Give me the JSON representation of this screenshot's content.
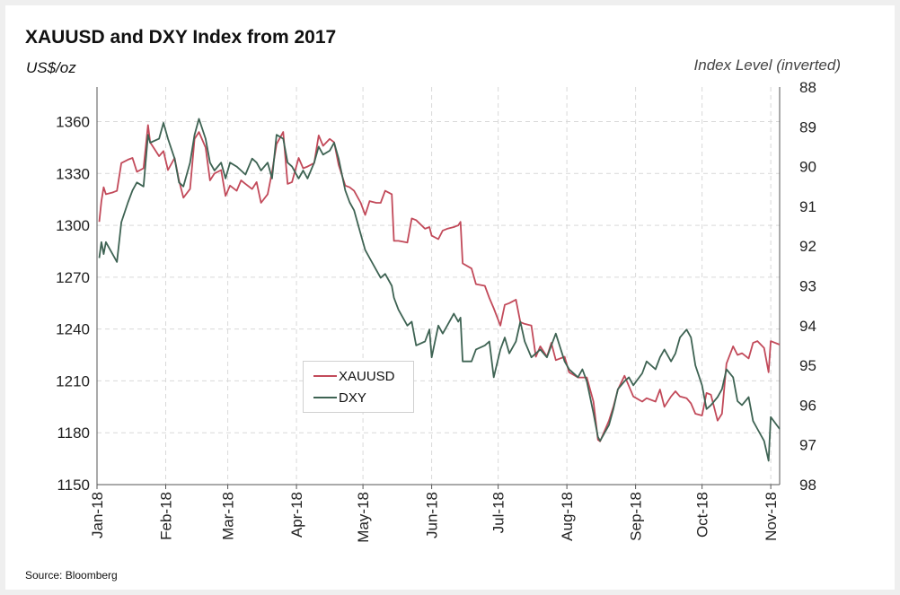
{
  "title": "XAUUSD and DXY Index from 2017",
  "left_axis_label": "US$/oz",
  "right_axis_label": "Index Level (inverted)",
  "source": "Source: Bloomberg",
  "colors": {
    "xauusd": "#c24a5a",
    "dxy": "#3e6353",
    "grid": "#d9d9d9",
    "axis": "#555555"
  },
  "chart_data": {
    "type": "line",
    "x_ticks": [
      "Jan-18",
      "Feb-18",
      "Mar-18",
      "Apr-18",
      "May-18",
      "Jun-18",
      "Jul-18",
      "Aug-18",
      "Sep-18",
      "Oct-18",
      "Nov-18"
    ],
    "x_range": [
      "2018-01-01",
      "2018-11-05"
    ],
    "y_left": {
      "range": [
        1150,
        1380
      ],
      "ticks": [
        1150,
        1180,
        1210,
        1240,
        1270,
        1300,
        1330,
        1360
      ]
    },
    "y_right": {
      "range": [
        88,
        98
      ],
      "inverted": true,
      "ticks": [
        88,
        89,
        90,
        91,
        92,
        93,
        94,
        95,
        96,
        97,
        98
      ]
    },
    "legend": {
      "position": "center"
    },
    "grid": true,
    "series": [
      {
        "name": "XAUUSD",
        "axis": "left",
        "points": [
          [
            "2018-01-02",
            1302
          ],
          [
            "2018-01-03",
            1314
          ],
          [
            "2018-01-04",
            1322
          ],
          [
            "2018-01-05",
            1318
          ],
          [
            "2018-01-08",
            1319
          ],
          [
            "2018-01-10",
            1320
          ],
          [
            "2018-01-12",
            1336
          ],
          [
            "2018-01-15",
            1338
          ],
          [
            "2018-01-17",
            1339
          ],
          [
            "2018-01-19",
            1331
          ],
          [
            "2018-01-22",
            1333
          ],
          [
            "2018-01-24",
            1358
          ],
          [
            "2018-01-25",
            1348
          ],
          [
            "2018-01-29",
            1340
          ],
          [
            "2018-01-31",
            1343
          ],
          [
            "2018-02-02",
            1332
          ],
          [
            "2018-02-05",
            1339
          ],
          [
            "2018-02-07",
            1326
          ],
          [
            "2018-02-09",
            1316
          ],
          [
            "2018-02-12",
            1321
          ],
          [
            "2018-02-14",
            1350
          ],
          [
            "2018-02-16",
            1354
          ],
          [
            "2018-02-19",
            1345
          ],
          [
            "2018-02-21",
            1326
          ],
          [
            "2018-02-23",
            1330
          ],
          [
            "2018-02-26",
            1332
          ],
          [
            "2018-02-28",
            1317
          ],
          [
            "2018-03-02",
            1323
          ],
          [
            "2018-03-05",
            1320
          ],
          [
            "2018-03-07",
            1326
          ],
          [
            "2018-03-09",
            1324
          ],
          [
            "2018-03-12",
            1321
          ],
          [
            "2018-03-14",
            1325
          ],
          [
            "2018-03-16",
            1313
          ],
          [
            "2018-03-19",
            1318
          ],
          [
            "2018-03-21",
            1331
          ],
          [
            "2018-03-23",
            1347
          ],
          [
            "2018-03-26",
            1354
          ],
          [
            "2018-03-28",
            1324
          ],
          [
            "2018-03-30",
            1325
          ],
          [
            "2018-04-02",
            1339
          ],
          [
            "2018-04-04",
            1333
          ],
          [
            "2018-04-06",
            1334
          ],
          [
            "2018-04-09",
            1336
          ],
          [
            "2018-04-11",
            1352
          ],
          [
            "2018-04-13",
            1346
          ],
          [
            "2018-04-16",
            1350
          ],
          [
            "2018-04-18",
            1348
          ],
          [
            "2018-04-20",
            1335
          ],
          [
            "2018-04-23",
            1323
          ],
          [
            "2018-04-25",
            1322
          ],
          [
            "2018-04-27",
            1320
          ],
          [
            "2018-04-30",
            1313
          ],
          [
            "2018-05-02",
            1306
          ],
          [
            "2018-05-04",
            1314
          ],
          [
            "2018-05-07",
            1313
          ],
          [
            "2018-05-09",
            1313
          ],
          [
            "2018-05-11",
            1320
          ],
          [
            "2018-05-14",
            1318
          ],
          [
            "2018-05-15",
            1291
          ],
          [
            "2018-05-17",
            1291
          ],
          [
            "2018-05-21",
            1290
          ],
          [
            "2018-05-23",
            1304
          ],
          [
            "2018-05-25",
            1303
          ],
          [
            "2018-05-29",
            1298
          ],
          [
            "2018-05-31",
            1299
          ],
          [
            "2018-06-01",
            1294
          ],
          [
            "2018-06-04",
            1292
          ],
          [
            "2018-06-06",
            1297
          ],
          [
            "2018-06-08",
            1298
          ],
          [
            "2018-06-11",
            1299
          ],
          [
            "2018-06-13",
            1300
          ],
          [
            "2018-06-14",
            1302
          ],
          [
            "2018-06-15",
            1278
          ],
          [
            "2018-06-19",
            1275
          ],
          [
            "2018-06-21",
            1266
          ],
          [
            "2018-06-25",
            1265
          ],
          [
            "2018-06-27",
            1258
          ],
          [
            "2018-06-29",
            1252
          ],
          [
            "2018-07-02",
            1242
          ],
          [
            "2018-07-04",
            1254
          ],
          [
            "2018-07-06",
            1255
          ],
          [
            "2018-07-09",
            1257
          ],
          [
            "2018-07-11",
            1244
          ],
          [
            "2018-07-13",
            1243
          ],
          [
            "2018-07-16",
            1242
          ],
          [
            "2018-07-18",
            1224
          ],
          [
            "2018-07-20",
            1230
          ],
          [
            "2018-07-23",
            1224
          ],
          [
            "2018-07-25",
            1232
          ],
          [
            "2018-07-27",
            1222
          ],
          [
            "2018-07-31",
            1224
          ],
          [
            "2018-08-02",
            1215
          ],
          [
            "2018-08-06",
            1212
          ],
          [
            "2018-08-08",
            1212
          ],
          [
            "2018-08-10",
            1212
          ],
          [
            "2018-08-13",
            1198
          ],
          [
            "2018-08-15",
            1176
          ],
          [
            "2018-08-16",
            1175
          ],
          [
            "2018-08-20",
            1187
          ],
          [
            "2018-08-22",
            1195
          ],
          [
            "2018-08-24",
            1205
          ],
          [
            "2018-08-27",
            1213
          ],
          [
            "2018-08-29",
            1207
          ],
          [
            "2018-08-31",
            1201
          ],
          [
            "2018-09-04",
            1198
          ],
          [
            "2018-09-06",
            1200
          ],
          [
            "2018-09-10",
            1198
          ],
          [
            "2018-09-12",
            1205
          ],
          [
            "2018-09-14",
            1195
          ],
          [
            "2018-09-17",
            1201
          ],
          [
            "2018-09-19",
            1204
          ],
          [
            "2018-09-21",
            1201
          ],
          [
            "2018-09-24",
            1200
          ],
          [
            "2018-09-26",
            1197
          ],
          [
            "2018-09-28",
            1191
          ],
          [
            "2018-10-01",
            1190
          ],
          [
            "2018-10-03",
            1203
          ],
          [
            "2018-10-05",
            1202
          ],
          [
            "2018-10-08",
            1187
          ],
          [
            "2018-10-10",
            1191
          ],
          [
            "2018-10-12",
            1220
          ],
          [
            "2018-10-15",
            1230
          ],
          [
            "2018-10-17",
            1225
          ],
          [
            "2018-10-19",
            1226
          ],
          [
            "2018-10-22",
            1223
          ],
          [
            "2018-10-24",
            1232
          ],
          [
            "2018-10-26",
            1233
          ],
          [
            "2018-10-29",
            1229
          ],
          [
            "2018-10-31",
            1215
          ],
          [
            "2018-11-01",
            1233
          ],
          [
            "2018-11-05",
            1231
          ]
        ]
      },
      {
        "name": "DXY",
        "axis": "right",
        "points": [
          [
            "2018-01-02",
            92.3
          ],
          [
            "2018-01-03",
            91.9
          ],
          [
            "2018-01-04",
            92.2
          ],
          [
            "2018-01-05",
            91.9
          ],
          [
            "2018-01-08",
            92.2
          ],
          [
            "2018-01-10",
            92.4
          ],
          [
            "2018-01-12",
            91.4
          ],
          [
            "2018-01-15",
            90.9
          ],
          [
            "2018-01-17",
            90.6
          ],
          [
            "2018-01-19",
            90.4
          ],
          [
            "2018-01-22",
            90.5
          ],
          [
            "2018-01-24",
            89.2
          ],
          [
            "2018-01-25",
            89.4
          ],
          [
            "2018-01-29",
            89.3
          ],
          [
            "2018-01-31",
            88.9
          ],
          [
            "2018-02-02",
            89.3
          ],
          [
            "2018-02-05",
            89.8
          ],
          [
            "2018-02-07",
            90.4
          ],
          [
            "2018-02-09",
            90.5
          ],
          [
            "2018-02-12",
            89.9
          ],
          [
            "2018-02-14",
            89.2
          ],
          [
            "2018-02-16",
            88.8
          ],
          [
            "2018-02-19",
            89.3
          ],
          [
            "2018-02-21",
            89.9
          ],
          [
            "2018-02-23",
            90.1
          ],
          [
            "2018-02-26",
            89.9
          ],
          [
            "2018-02-28",
            90.3
          ],
          [
            "2018-03-02",
            89.9
          ],
          [
            "2018-03-05",
            90.0
          ],
          [
            "2018-03-07",
            90.1
          ],
          [
            "2018-03-09",
            90.2
          ],
          [
            "2018-03-12",
            89.8
          ],
          [
            "2018-03-14",
            89.9
          ],
          [
            "2018-03-16",
            90.1
          ],
          [
            "2018-03-19",
            89.9
          ],
          [
            "2018-03-21",
            90.3
          ],
          [
            "2018-03-23",
            89.2
          ],
          [
            "2018-03-26",
            89.3
          ],
          [
            "2018-03-28",
            89.9
          ],
          [
            "2018-03-30",
            90.0
          ],
          [
            "2018-04-02",
            90.3
          ],
          [
            "2018-04-04",
            90.1
          ],
          [
            "2018-04-06",
            90.3
          ],
          [
            "2018-04-09",
            89.9
          ],
          [
            "2018-04-11",
            89.5
          ],
          [
            "2018-04-13",
            89.7
          ],
          [
            "2018-04-16",
            89.6
          ],
          [
            "2018-04-18",
            89.4
          ],
          [
            "2018-04-20",
            89.8
          ],
          [
            "2018-04-23",
            90.6
          ],
          [
            "2018-04-25",
            90.9
          ],
          [
            "2018-04-27",
            91.1
          ],
          [
            "2018-04-30",
            91.7
          ],
          [
            "2018-05-02",
            92.1
          ],
          [
            "2018-05-04",
            92.3
          ],
          [
            "2018-05-07",
            92.6
          ],
          [
            "2018-05-09",
            92.8
          ],
          [
            "2018-05-11",
            92.7
          ],
          [
            "2018-05-14",
            93.0
          ],
          [
            "2018-05-15",
            93.3
          ],
          [
            "2018-05-17",
            93.6
          ],
          [
            "2018-05-21",
            94.0
          ],
          [
            "2018-05-23",
            93.9
          ],
          [
            "2018-05-25",
            94.5
          ],
          [
            "2018-05-29",
            94.4
          ],
          [
            "2018-05-31",
            94.1
          ],
          [
            "2018-06-01",
            94.8
          ],
          [
            "2018-06-04",
            94.0
          ],
          [
            "2018-06-06",
            94.2
          ],
          [
            "2018-06-08",
            94.0
          ],
          [
            "2018-06-11",
            93.7
          ],
          [
            "2018-06-13",
            93.9
          ],
          [
            "2018-06-14",
            93.8
          ],
          [
            "2018-06-15",
            94.9
          ],
          [
            "2018-06-19",
            94.9
          ],
          [
            "2018-06-21",
            94.6
          ],
          [
            "2018-06-25",
            94.5
          ],
          [
            "2018-06-27",
            94.4
          ],
          [
            "2018-06-29",
            95.3
          ],
          [
            "2018-07-02",
            94.6
          ],
          [
            "2018-07-04",
            94.3
          ],
          [
            "2018-07-06",
            94.7
          ],
          [
            "2018-07-09",
            94.4
          ],
          [
            "2018-07-11",
            93.9
          ],
          [
            "2018-07-13",
            94.4
          ],
          [
            "2018-07-16",
            94.8
          ],
          [
            "2018-07-18",
            94.7
          ],
          [
            "2018-07-20",
            94.6
          ],
          [
            "2018-07-23",
            94.8
          ],
          [
            "2018-07-25",
            94.5
          ],
          [
            "2018-07-27",
            94.2
          ],
          [
            "2018-07-31",
            94.9
          ],
          [
            "2018-08-02",
            95.1
          ],
          [
            "2018-08-06",
            95.3
          ],
          [
            "2018-08-08",
            95.1
          ],
          [
            "2018-08-10",
            95.4
          ],
          [
            "2018-08-13",
            96.2
          ],
          [
            "2018-08-15",
            96.8
          ],
          [
            "2018-08-16",
            96.9
          ],
          [
            "2018-08-20",
            96.5
          ],
          [
            "2018-08-22",
            96.1
          ],
          [
            "2018-08-24",
            95.6
          ],
          [
            "2018-08-27",
            95.4
          ],
          [
            "2018-08-29",
            95.3
          ],
          [
            "2018-08-31",
            95.5
          ],
          [
            "2018-09-04",
            95.2
          ],
          [
            "2018-09-06",
            94.9
          ],
          [
            "2018-09-10",
            95.1
          ],
          [
            "2018-09-12",
            94.8
          ],
          [
            "2018-09-14",
            94.6
          ],
          [
            "2018-09-17",
            94.9
          ],
          [
            "2018-09-19",
            94.7
          ],
          [
            "2018-09-21",
            94.3
          ],
          [
            "2018-09-24",
            94.1
          ],
          [
            "2018-09-26",
            94.3
          ],
          [
            "2018-09-28",
            95.0
          ],
          [
            "2018-10-01",
            95.5
          ],
          [
            "2018-10-03",
            96.1
          ],
          [
            "2018-10-05",
            96.0
          ],
          [
            "2018-10-08",
            95.8
          ],
          [
            "2018-10-10",
            95.6
          ],
          [
            "2018-10-12",
            95.1
          ],
          [
            "2018-10-15",
            95.3
          ],
          [
            "2018-10-17",
            95.9
          ],
          [
            "2018-10-19",
            96.0
          ],
          [
            "2018-10-22",
            95.8
          ],
          [
            "2018-10-24",
            96.4
          ],
          [
            "2018-10-26",
            96.6
          ],
          [
            "2018-10-29",
            96.9
          ],
          [
            "2018-10-31",
            97.4
          ],
          [
            "2018-11-01",
            96.3
          ],
          [
            "2018-11-05",
            96.6
          ]
        ]
      }
    ]
  }
}
